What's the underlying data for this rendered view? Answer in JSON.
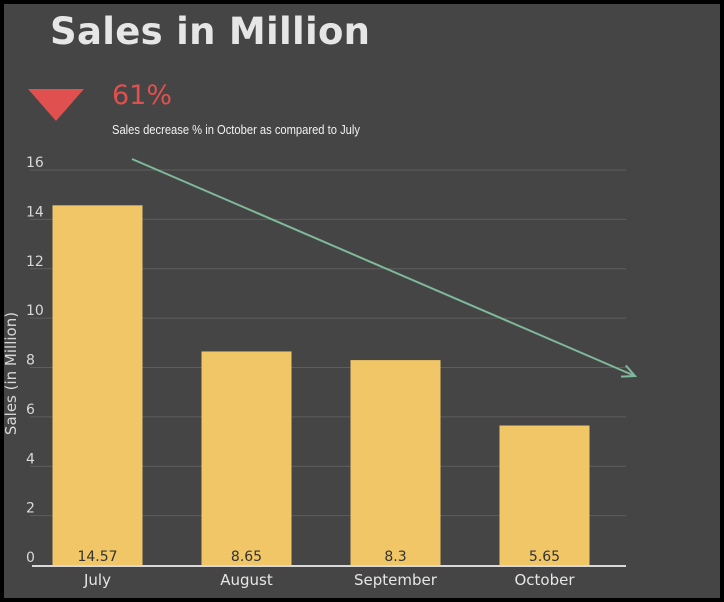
{
  "title": "Sales in Million",
  "kpi": {
    "value": "61%",
    "caption": "Sales decrease %  in October as compared to July",
    "icon": "triangle-down-icon",
    "color": "#e0504f"
  },
  "colors": {
    "background": "#454545",
    "bar": "#f0c666",
    "trend_arrow": "#7fb99b",
    "grid": "#5e5e5e",
    "baseline": "#d9d9d9"
  },
  "chart_data": {
    "type": "bar",
    "categories": [
      "July",
      "August",
      "September",
      "October"
    ],
    "values": [
      14.57,
      8.65,
      8.3,
      5.65
    ],
    "value_labels": [
      "14.57",
      "8.65",
      "8.3",
      "5.65"
    ],
    "ylabel": "Sales (in Million)",
    "xlabel": "",
    "ylim": [
      0,
      16
    ],
    "yticks": [
      0,
      2,
      4,
      6,
      8,
      10,
      12,
      14,
      16
    ],
    "grid": true,
    "trend": "decreasing"
  }
}
